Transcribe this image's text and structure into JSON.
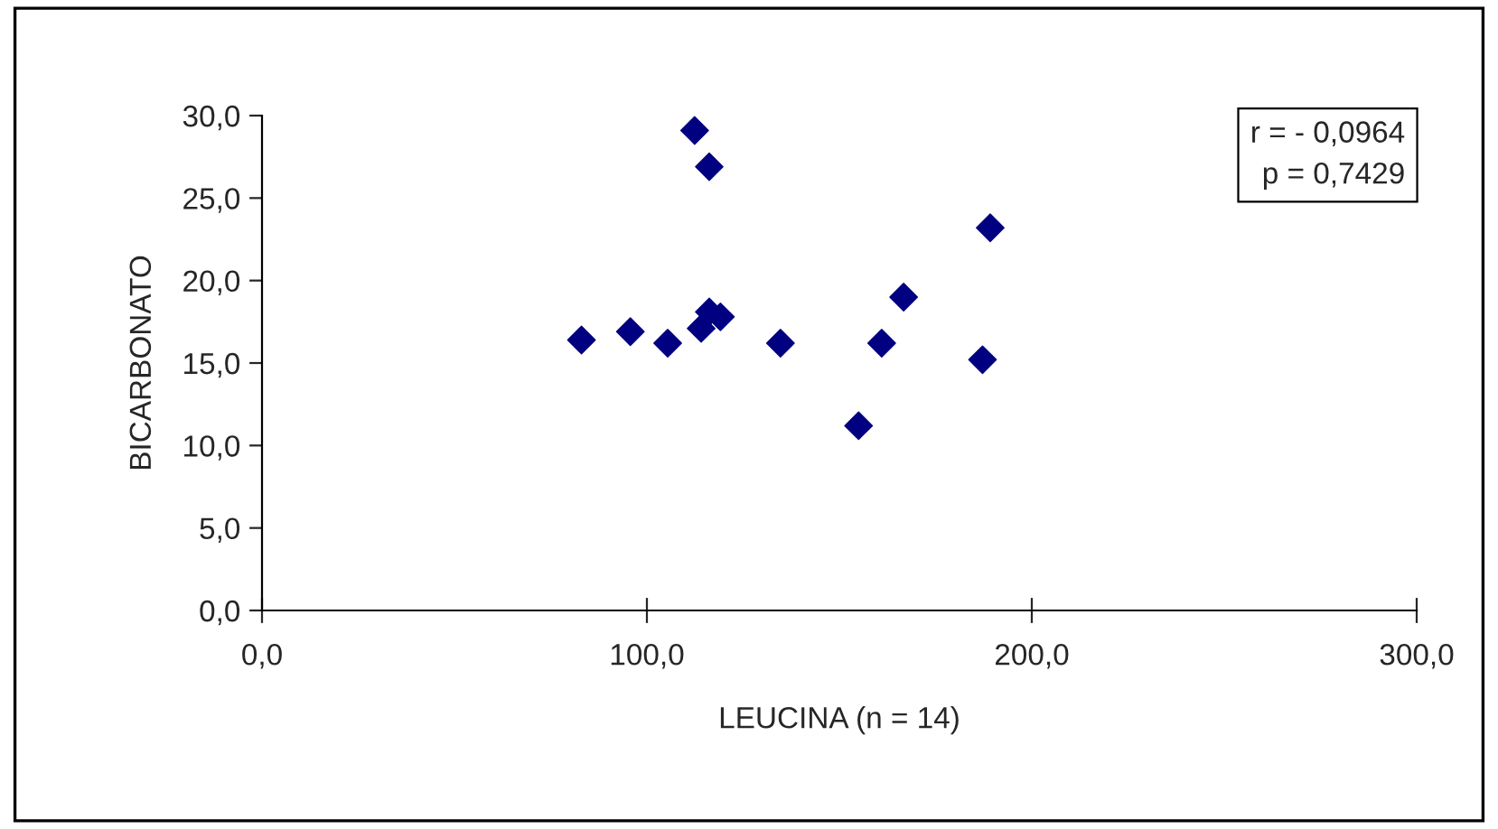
{
  "chart_data": {
    "type": "scatter",
    "xlabel": "LEUCINA (n = 14)",
    "ylabel": "BICARBONATO",
    "x": [
      83.0,
      95.7,
      105.4,
      112.4,
      116.2,
      114.1,
      116.2,
      119.1,
      134.7,
      155.0,
      161.0,
      166.7,
      187.2,
      189.2
    ],
    "values": [
      16.4,
      16.9,
      16.2,
      29.1,
      26.9,
      17.1,
      18.1,
      17.8,
      16.2,
      11.2,
      16.2,
      19.0,
      15.2,
      23.2
    ],
    "color": "#000080",
    "marker": "diamond",
    "xlim": [
      0,
      300
    ],
    "xticks": [
      {
        "value": 0,
        "label": "0,0"
      },
      {
        "value": 100,
        "label": "100,0"
      },
      {
        "value": 200,
        "label": "200,0"
      },
      {
        "value": 300,
        "label": "300,0"
      }
    ],
    "ylim": [
      0,
      30
    ],
    "yticks": [
      {
        "value": 0,
        "label": "0,0"
      },
      {
        "value": 5,
        "label": "5,0"
      },
      {
        "value": 10,
        "label": "10,0"
      },
      {
        "value": 15,
        "label": "15,0"
      },
      {
        "value": 20,
        "label": "20,0"
      },
      {
        "value": 25,
        "label": "25,0"
      },
      {
        "value": 30,
        "label": "30,0"
      }
    ],
    "annotations": [
      "r = - 0,0964\np = 0,7429"
    ],
    "grid": false
  }
}
